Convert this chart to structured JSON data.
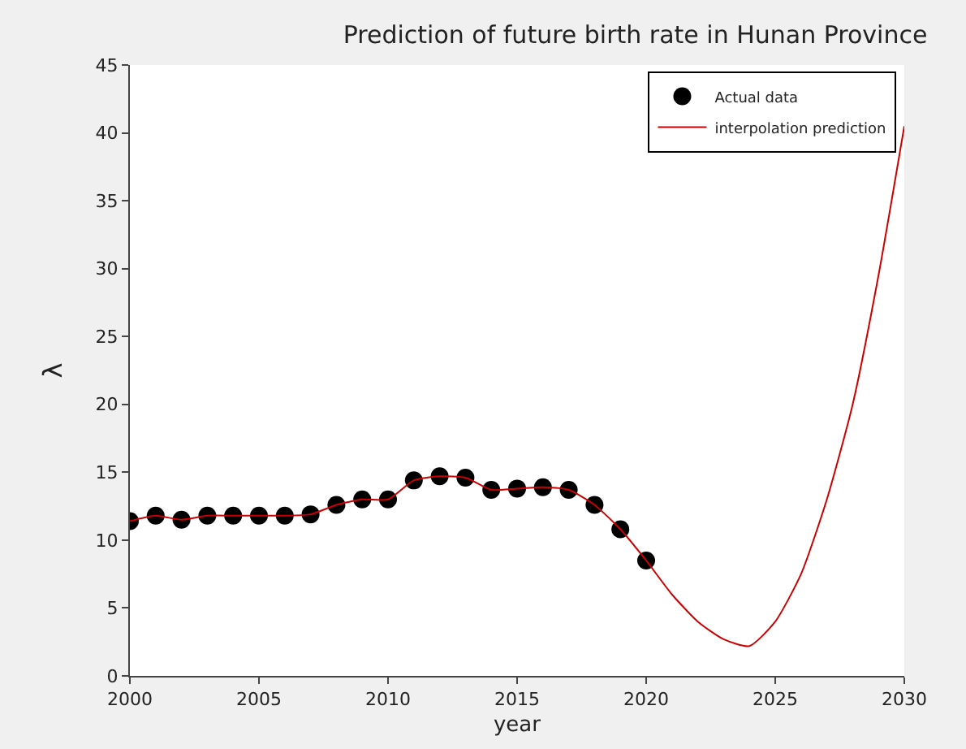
{
  "chart_data": {
    "type": "line",
    "title": "Prediction of future birth rate in Hunan Province",
    "xlabel": "year",
    "ylabel": "λ",
    "xlim": [
      2000,
      2030
    ],
    "xticks": [
      2000,
      2005,
      2010,
      2015,
      2020,
      2025,
      2030
    ],
    "ylim": [
      0,
      45
    ],
    "yticks": [
      0,
      5,
      10,
      15,
      20,
      25,
      30,
      35,
      40,
      45
    ],
    "grid": false,
    "legend": "top right",
    "series": [
      {
        "name": "Actual data",
        "type": "scatter",
        "marker": "circle",
        "color": "#000000",
        "x": [
          2000,
          2001,
          2002,
          2003,
          2004,
          2005,
          2006,
          2007,
          2008,
          2009,
          2010,
          2011,
          2012,
          2013,
          2014,
          2015,
          2016,
          2017,
          2018,
          2019,
          2020
        ],
        "values": [
          11.4,
          11.8,
          11.5,
          11.8,
          11.8,
          11.8,
          11.8,
          11.9,
          12.6,
          13.0,
          13.0,
          14.4,
          14.7,
          14.6,
          13.7,
          13.8,
          13.9,
          13.7,
          12.6,
          10.8,
          8.5
        ]
      },
      {
        "name": "interpolation prediction",
        "type": "line",
        "marker": "none",
        "line_style": "solid",
        "color": "#cc0000",
        "x": [
          2000,
          2001,
          2002,
          2003,
          2004,
          2005,
          2006,
          2007,
          2008,
          2009,
          2010,
          2011,
          2012,
          2013,
          2014,
          2015,
          2016,
          2017,
          2018,
          2019,
          2020,
          2021,
          2022,
          2023,
          2024,
          2025,
          2026,
          2027,
          2028,
          2029,
          2030
        ],
        "values": [
          11.4,
          11.8,
          11.5,
          11.8,
          11.8,
          11.8,
          11.8,
          11.9,
          12.6,
          13.0,
          13.0,
          14.4,
          14.7,
          14.6,
          13.7,
          13.8,
          13.9,
          13.7,
          12.6,
          10.8,
          8.5,
          6.0,
          4.0,
          2.7,
          2.2,
          4.0,
          7.5,
          13.0,
          20.0,
          29.5,
          40.5
        ]
      }
    ]
  }
}
